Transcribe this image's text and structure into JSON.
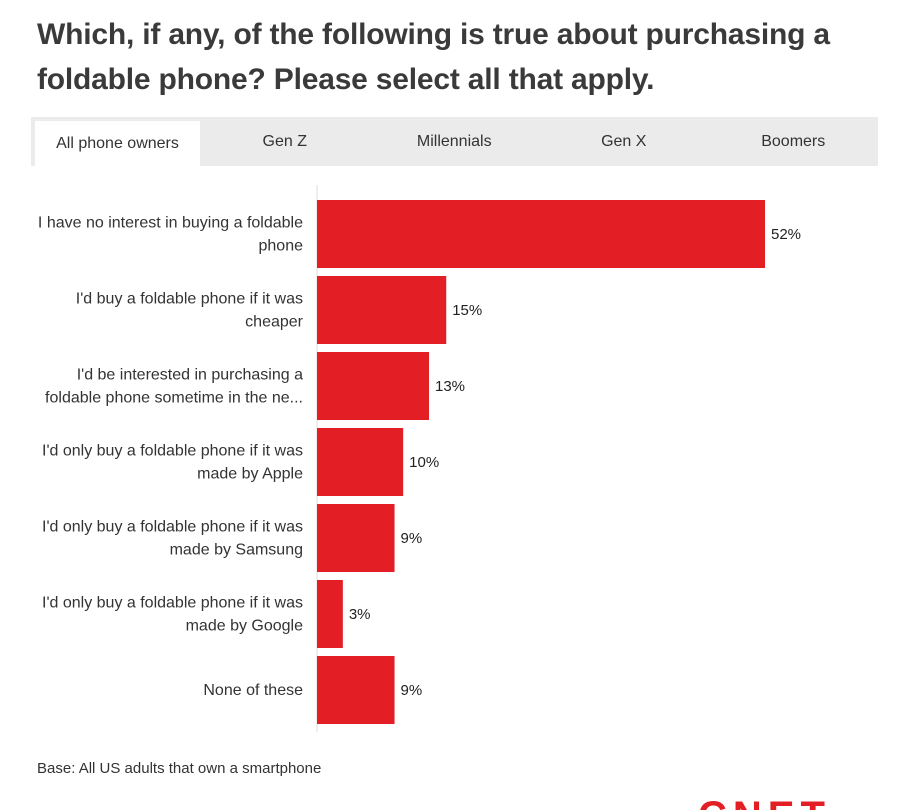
{
  "title": "Which, if any, of the following is true about purchasing a foldable phone? Please select all that apply.",
  "tabs": [
    {
      "label": "All phone owners",
      "active": true
    },
    {
      "label": "Gen Z",
      "active": false
    },
    {
      "label": "Millennials",
      "active": false
    },
    {
      "label": "Gen X",
      "active": false
    },
    {
      "label": "Boomers",
      "active": false
    }
  ],
  "chart_data": {
    "type": "bar",
    "orientation": "horizontal",
    "categories": [
      [
        "I have no interest in buying a foldable",
        "phone"
      ],
      [
        "I'd buy a foldable phone if it was",
        "cheaper"
      ],
      [
        "I'd be interested in purchasing a",
        "foldable phone sometime in the ne..."
      ],
      [
        "I'd only buy a foldable phone if it was",
        "made by Apple"
      ],
      [
        "I'd only buy a foldable phone if it was",
        "made by Samsung"
      ],
      [
        "I'd only buy a foldable phone if it was",
        "made by Google"
      ],
      [
        "None of these"
      ]
    ],
    "values": [
      52,
      15,
      13,
      10,
      9,
      3,
      9
    ],
    "value_labels": [
      "52%",
      "15%",
      "13%",
      "10%",
      "9%",
      "3%",
      "9%"
    ],
    "unit": "%",
    "color": "#e31e24",
    "xlim": [
      0,
      60
    ],
    "grid": false
  },
  "footnote": "Base: All US adults that own a smartphone",
  "brand": "CNET",
  "colors": {
    "accent": "#e31e24",
    "tab_bar": "#ebebeb"
  }
}
